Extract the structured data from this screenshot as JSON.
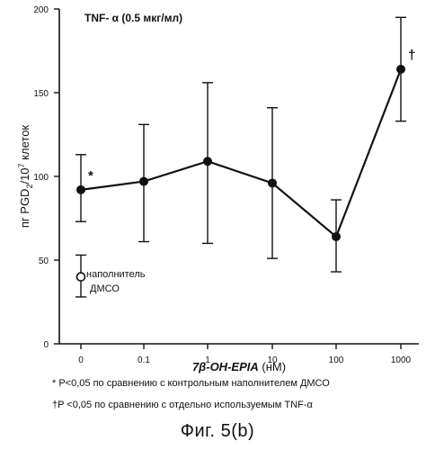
{
  "chart_data": {
    "type": "line",
    "title": "TNF- α (0.5 мкг/мл)",
    "ylabel": "пг PGD",
    "ylabel_sub": "2",
    "ylabel_mid": "/10",
    "ylabel_sup": "7",
    "ylabel_tail": " клеток",
    "xlabel": "7β-OH-EPIA",
    "xlabel_unit": "(нМ)",
    "categories": [
      "0",
      "0.1",
      "1",
      "10",
      "100",
      "1000"
    ],
    "yticks": [
      0,
      50,
      100,
      150,
      200
    ],
    "ylim": [
      0,
      200
    ],
    "series": [
      {
        "values": [
          92,
          97,
          109,
          96,
          64,
          164
        ],
        "err_low": [
          73,
          61,
          60,
          51,
          43,
          133
        ],
        "err_high": [
          113,
          131,
          156,
          141,
          86,
          195
        ]
      }
    ],
    "vehicle": {
      "value": 40,
      "err_low": 28,
      "err_high": 53,
      "label_line1": "наполнитель",
      "label_line2": "ДМСО"
    },
    "annotations": [
      {
        "category": "0",
        "mark": "*"
      },
      {
        "category": "1000",
        "mark": "†"
      }
    ]
  },
  "footnotes": {
    "note1": "* P<0,05 по сравнению с контрольным наполнителем ДМСО",
    "note2": "†P <0,05 по сравнению с отдельно используемым TNF-α"
  },
  "caption": "Фиг. 5(b)"
}
